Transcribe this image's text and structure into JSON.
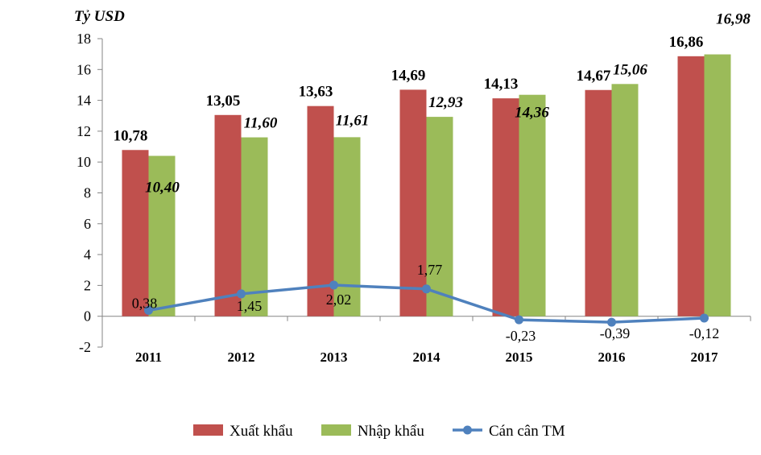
{
  "chart_data": {
    "type": "bar",
    "title": "",
    "ylabel": "Tỷ USD",
    "xlabel": "",
    "ylim": [
      -2,
      18
    ],
    "yticks": [
      -2,
      0,
      2,
      4,
      6,
      8,
      10,
      12,
      14,
      16,
      18
    ],
    "categories": [
      "2011",
      "2012",
      "2013",
      "2014",
      "2015",
      "2016",
      "2017"
    ],
    "series": [
      {
        "name": "Xuất khẩu",
        "kind": "bar",
        "color": "#C0504D",
        "values": [
          10.78,
          13.05,
          13.63,
          14.69,
          14.13,
          14.67,
          16.86
        ],
        "labels": [
          "10,78",
          "13,05",
          "13,63",
          "14,69",
          "14,13",
          "14,67",
          "16,86"
        ]
      },
      {
        "name": "Nhập khẩu",
        "kind": "bar",
        "color": "#9BBB59",
        "values": [
          10.4,
          11.6,
          11.61,
          12.93,
          14.36,
          15.06,
          16.98
        ],
        "labels": [
          "10,40",
          "11,60",
          "11,61",
          "12,93",
          "14,36",
          "15,06",
          "16,98"
        ]
      },
      {
        "name": "Cán cân TM",
        "kind": "line",
        "color": "#4F81BD",
        "values": [
          0.38,
          1.45,
          2.02,
          1.77,
          -0.23,
          -0.39,
          -0.12
        ],
        "labels": [
          "0,38",
          "1,45",
          "2,02",
          "1,77",
          "-0,23",
          "-0,39",
          "-0,12"
        ]
      }
    ],
    "legend": "bottom",
    "grid": false
  }
}
